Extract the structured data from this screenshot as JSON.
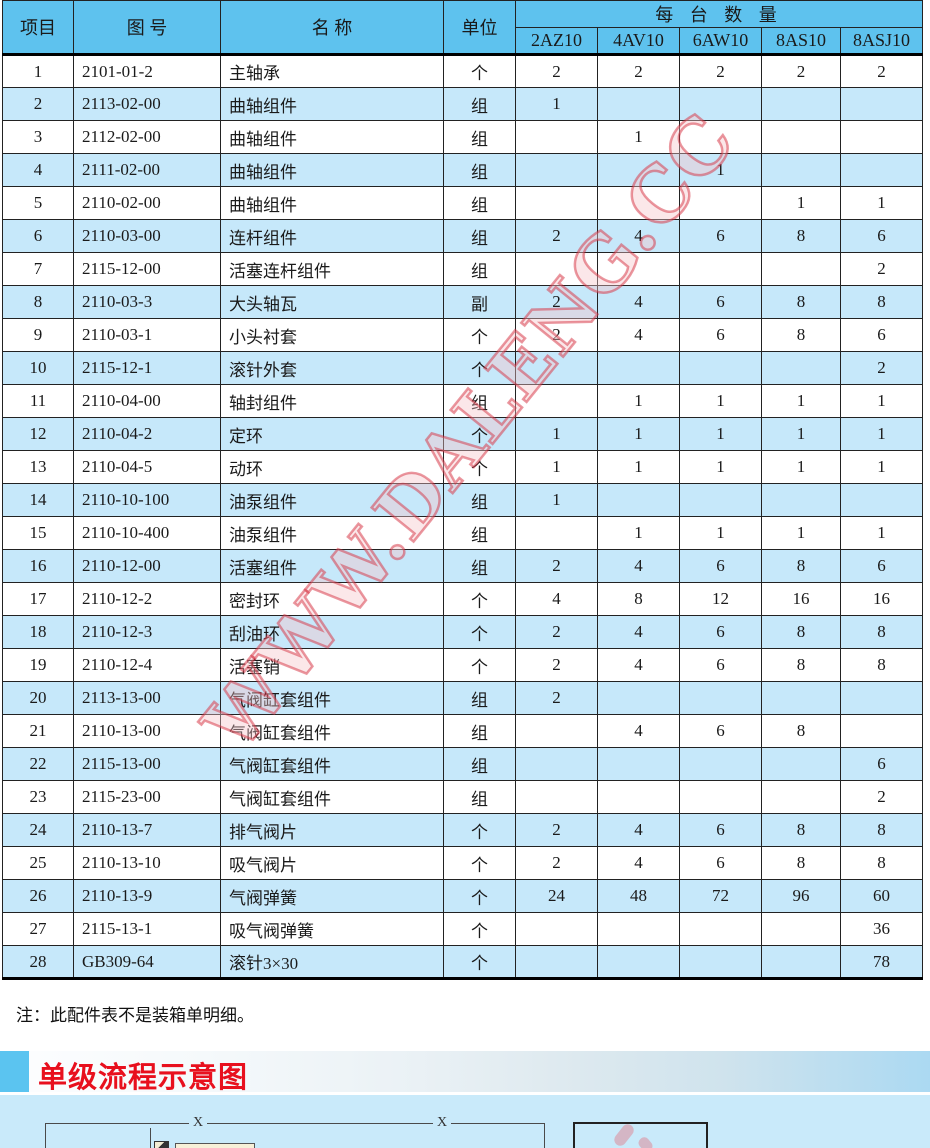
{
  "watermark": {
    "text": "WWW.DALENG.CC"
  },
  "table": {
    "headers": {
      "item": "项目",
      "code": "图  号",
      "name": "名  称",
      "unit": "单位",
      "qty_group": "每 台 数 量"
    },
    "models": [
      "2AZ10",
      "4AV10",
      "6AW10",
      "8AS10",
      "8ASJ10"
    ],
    "rows": [
      {
        "no": "1",
        "code": "2101-01-2",
        "name": "主轴承",
        "unit": "个",
        "qty": [
          "2",
          "2",
          "2",
          "2",
          "2"
        ]
      },
      {
        "no": "2",
        "code": "2113-02-00",
        "name": "曲轴组件",
        "unit": "组",
        "qty": [
          "1",
          "",
          "",
          "",
          ""
        ]
      },
      {
        "no": "3",
        "code": "2112-02-00",
        "name": "曲轴组件",
        "unit": "组",
        "qty": [
          "",
          "1",
          "",
          "",
          ""
        ]
      },
      {
        "no": "4",
        "code": "2111-02-00",
        "name": "曲轴组件",
        "unit": "组",
        "qty": [
          "",
          "",
          "1",
          "",
          ""
        ]
      },
      {
        "no": "5",
        "code": "2110-02-00",
        "name": "曲轴组件",
        "unit": "组",
        "qty": [
          "",
          "",
          "",
          "1",
          "1"
        ]
      },
      {
        "no": "6",
        "code": "2110-03-00",
        "name": "连杆组件",
        "unit": "组",
        "qty": [
          "2",
          "4",
          "6",
          "8",
          "6"
        ]
      },
      {
        "no": "7",
        "code": "2115-12-00",
        "name": "活塞连杆组件",
        "unit": "组",
        "qty": [
          "",
          "",
          "",
          "",
          "2"
        ]
      },
      {
        "no": "8",
        "code": "2110-03-3",
        "name": "大头轴瓦",
        "unit": "副",
        "qty": [
          "2",
          "4",
          "6",
          "8",
          "8"
        ]
      },
      {
        "no": "9",
        "code": "2110-03-1",
        "name": "小头衬套",
        "unit": "个",
        "qty": [
          "2",
          "4",
          "6",
          "8",
          "6"
        ]
      },
      {
        "no": "10",
        "code": "2115-12-1",
        "name": "滚针外套",
        "unit": "个",
        "qty": [
          "",
          "",
          "",
          "",
          "2"
        ]
      },
      {
        "no": "11",
        "code": "2110-04-00",
        "name": "轴封组件",
        "unit": "组",
        "qty": [
          "",
          "1",
          "1",
          "1",
          "1"
        ]
      },
      {
        "no": "12",
        "code": "2110-04-2",
        "name": "定环",
        "unit": "个",
        "qty": [
          "1",
          "1",
          "1",
          "1",
          "1"
        ]
      },
      {
        "no": "13",
        "code": "2110-04-5",
        "name": "动环",
        "unit": "个",
        "qty": [
          "1",
          "1",
          "1",
          "1",
          "1"
        ]
      },
      {
        "no": "14",
        "code": "2110-10-100",
        "name": "油泵组件",
        "unit": "组",
        "qty": [
          "1",
          "",
          "",
          "",
          ""
        ]
      },
      {
        "no": "15",
        "code": "2110-10-400",
        "name": "油泵组件",
        "unit": "组",
        "qty": [
          "",
          "1",
          "1",
          "1",
          "1"
        ]
      },
      {
        "no": "16",
        "code": "2110-12-00",
        "name": "活塞组件",
        "unit": "组",
        "qty": [
          "2",
          "4",
          "6",
          "8",
          "6"
        ]
      },
      {
        "no": "17",
        "code": "2110-12-2",
        "name": "密封环",
        "unit": "个",
        "qty": [
          "4",
          "8",
          "12",
          "16",
          "16"
        ]
      },
      {
        "no": "18",
        "code": "2110-12-3",
        "name": "刮油环",
        "unit": "个",
        "qty": [
          "2",
          "4",
          "6",
          "8",
          "8"
        ]
      },
      {
        "no": "19",
        "code": "2110-12-4",
        "name": "活塞销",
        "unit": "个",
        "qty": [
          "2",
          "4",
          "6",
          "8",
          "8"
        ]
      },
      {
        "no": "20",
        "code": "2113-13-00",
        "name": "气阀缸套组件",
        "unit": "组",
        "qty": [
          "2",
          "",
          "",
          "",
          ""
        ]
      },
      {
        "no": "21",
        "code": "2110-13-00",
        "name": "气阀缸套组件",
        "unit": "组",
        "qty": [
          "",
          "4",
          "6",
          "8",
          ""
        ]
      },
      {
        "no": "22",
        "code": "2115-13-00",
        "name": "气阀缸套组件",
        "unit": "组",
        "qty": [
          "",
          "",
          "",
          "",
          "6"
        ]
      },
      {
        "no": "23",
        "code": "2115-23-00",
        "name": "气阀缸套组件",
        "unit": "组",
        "qty": [
          "",
          "",
          "",
          "",
          "2"
        ]
      },
      {
        "no": "24",
        "code": "2110-13-7",
        "name": "排气阀片",
        "unit": "个",
        "qty": [
          "2",
          "4",
          "6",
          "8",
          "8"
        ]
      },
      {
        "no": "25",
        "code": "2110-13-10",
        "name": "吸气阀片",
        "unit": "个",
        "qty": [
          "2",
          "4",
          "6",
          "8",
          "8"
        ]
      },
      {
        "no": "26",
        "code": "2110-13-9",
        "name": "气阀弹簧",
        "unit": "个",
        "qty": [
          "24",
          "48",
          "72",
          "96",
          "60"
        ]
      },
      {
        "no": "27",
        "code": "2115-13-1",
        "name": "吸气阀弹簧",
        "unit": "个",
        "qty": [
          "",
          "",
          "",
          "",
          "36"
        ]
      },
      {
        "no": "28",
        "code": "GB309-64",
        "name": "滚针3×30",
        "unit": "个",
        "qty": [
          "",
          "",
          "",
          "",
          "78"
        ]
      }
    ]
  },
  "note": "注：此配件表不是装箱单明细。",
  "section": {
    "title": "单级流程示意图"
  },
  "diagram": {
    "x_label_1": "X",
    "x_label_2": "X"
  },
  "colors": {
    "header_blue": "#5ec2ee",
    "row_blue": "#c6e8fa",
    "section_blue": "#c9eafa",
    "banner_block_blue": "#5bc4f0",
    "title_red": "#e8101e",
    "watermark_red": "#d63040"
  }
}
